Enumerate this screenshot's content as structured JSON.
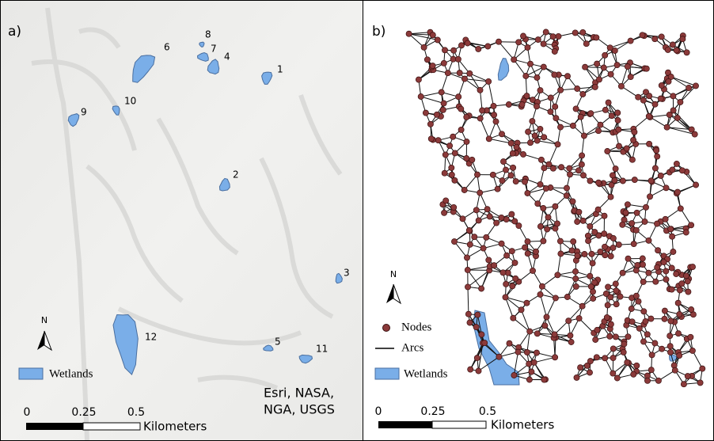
{
  "panels": [
    {
      "label": "a)",
      "wetland_labels": [
        "1",
        "2",
        "3",
        "4",
        "5",
        "6",
        "7",
        "8",
        "9",
        "10",
        "11",
        "12"
      ],
      "legend": [
        "Wetlands"
      ],
      "attribution": [
        "Esri, NASA,",
        "NGA, USGS"
      ],
      "north": "N",
      "scale_labels": [
        "0",
        "0.25",
        "0.5"
      ],
      "scale_unit": "Kilometers"
    },
    {
      "label": "b)",
      "legend": [
        "Nodes",
        "Arcs",
        "Wetlands"
      ],
      "north": "N",
      "scale_labels": [
        "0",
        "0.25",
        "0.5"
      ],
      "scale_unit": "Kilometers"
    }
  ]
}
